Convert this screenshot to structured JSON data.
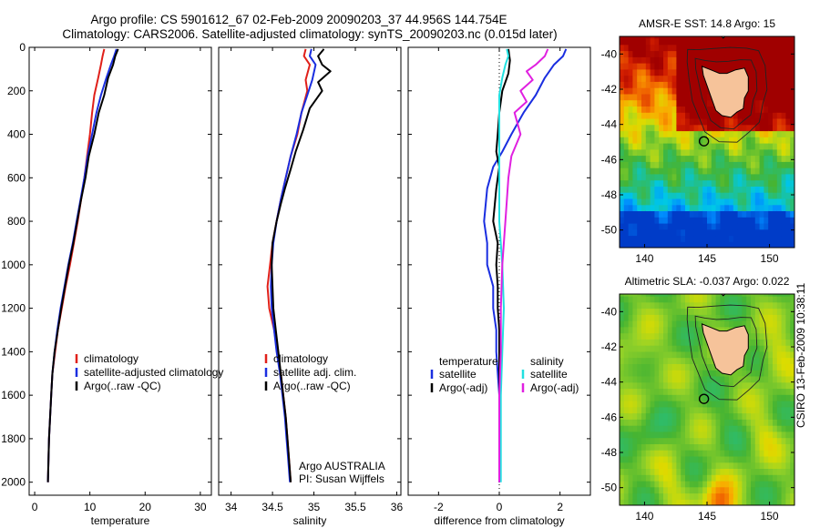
{
  "header": {
    "line1": "Argo profile: CS 5901612_67 02-Feb-2009 20090203_37 44.956S 144.754E",
    "line2": "Climatology: CARS2006. Satellite-adjusted climatology: synTS_20090203.nc (0.015d later)"
  },
  "stamp": "CSIRO 13-Feb-2009 10:38:11",
  "colors": {
    "clim": "#e0201a",
    "sat": "#1a2ee0",
    "argo": "#000000",
    "sat_sal": "#22e0e0",
    "argo_sal": "#e020e0"
  },
  "depth_axis": {
    "ticks": [
      0,
      200,
      400,
      600,
      800,
      1000,
      1200,
      1400,
      1600,
      1800,
      2000
    ],
    "range": [
      0,
      2060
    ]
  },
  "chart_data": [
    {
      "type": "line",
      "panel": "temperature",
      "xlabel": "temperature",
      "xlim": [
        -1,
        32
      ],
      "ylim": [
        2060,
        0
      ],
      "xticks": [
        0,
        10,
        20,
        30
      ],
      "legend": [
        "climatology",
        "satellite-adjusted climatology",
        "Argo(..raw -QC)"
      ],
      "series": [
        {
          "name": "climatology",
          "color": "clim",
          "points": [
            [
              12.6,
              8
            ],
            [
              12.3,
              40
            ],
            [
              12,
              80
            ],
            [
              11.5,
              140
            ],
            [
              10.8,
              220
            ],
            [
              10.4,
              300
            ],
            [
              10,
              400
            ],
            [
              9.5,
              500
            ],
            [
              9,
              600
            ],
            [
              8.4,
              700
            ],
            [
              7.8,
              800
            ],
            [
              7.1,
              900
            ],
            [
              6.4,
              1000
            ],
            [
              5.6,
              1100
            ],
            [
              4.9,
              1200
            ],
            [
              4.2,
              1300
            ],
            [
              3.7,
              1400
            ],
            [
              3.2,
              1500
            ],
            [
              3,
              1600
            ],
            [
              2.8,
              1700
            ],
            [
              2.6,
              1800
            ],
            [
              2.5,
              1900
            ],
            [
              2.4,
              2000
            ]
          ]
        },
        {
          "name": "satellite-adjusted climatology",
          "color": "sat",
          "points": [
            [
              14.8,
              8
            ],
            [
              14.4,
              40
            ],
            [
              13.8,
              80
            ],
            [
              13,
              140
            ],
            [
              12,
              220
            ],
            [
              11.2,
              300
            ],
            [
              10.4,
              400
            ],
            [
              9.6,
              500
            ],
            [
              9,
              600
            ],
            [
              8.3,
              700
            ],
            [
              7.6,
              800
            ],
            [
              6.9,
              900
            ],
            [
              6.1,
              1000
            ],
            [
              5.4,
              1100
            ],
            [
              4.7,
              1200
            ],
            [
              4.1,
              1300
            ],
            [
              3.6,
              1400
            ],
            [
              3.2,
              1500
            ],
            [
              3,
              1600
            ],
            [
              2.8,
              1700
            ],
            [
              2.6,
              1800
            ],
            [
              2.5,
              1900
            ],
            [
              2.4,
              2000
            ]
          ]
        },
        {
          "name": "Argo(..raw -QC)",
          "color": "argo",
          "points": [
            [
              15.1,
              8
            ],
            [
              14.6,
              40
            ],
            [
              14.2,
              80
            ],
            [
              13.3,
              140
            ],
            [
              12.6,
              220
            ],
            [
              11.6,
              300
            ],
            [
              10.8,
              400
            ],
            [
              9.8,
              500
            ],
            [
              9.2,
              600
            ],
            [
              8.4,
              700
            ],
            [
              7.7,
              800
            ],
            [
              7,
              900
            ],
            [
              6.2,
              1000
            ],
            [
              5.5,
              1100
            ],
            [
              4.8,
              1200
            ],
            [
              4.2,
              1300
            ],
            [
              3.6,
              1400
            ],
            [
              3.2,
              1500
            ],
            [
              3,
              1600
            ],
            [
              2.8,
              1700
            ],
            [
              2.6,
              1800
            ],
            [
              2.5,
              1900
            ],
            [
              2.4,
              2000
            ]
          ]
        }
      ]
    },
    {
      "type": "line",
      "panel": "salinity",
      "xlabel": "salinity",
      "xlim": [
        33.85,
        36.05
      ],
      "ylim": [
        2060,
        0
      ],
      "xticks": [
        34,
        34.5,
        35,
        35.5,
        36
      ],
      "legend": [
        "climatology",
        "satellite adj. clim.",
        "Argo(..raw -QC)"
      ],
      "annotations": [
        "Argo AUSTRALIA",
        "PI: Susan Wijffels"
      ],
      "series": [
        {
          "name": "climatology",
          "color": "clim",
          "points": [
            [
              34.9,
              8
            ],
            [
              34.88,
              40
            ],
            [
              34.95,
              80
            ],
            [
              34.9,
              150
            ],
            [
              34.92,
              200
            ],
            [
              34.85,
              300
            ],
            [
              34.8,
              400
            ],
            [
              34.72,
              500
            ],
            [
              34.66,
              600
            ],
            [
              34.6,
              700
            ],
            [
              34.55,
              800
            ],
            [
              34.5,
              900
            ],
            [
              34.47,
              1000
            ],
            [
              34.44,
              1100
            ],
            [
              34.46,
              1200
            ],
            [
              34.52,
              1300
            ],
            [
              34.56,
              1400
            ],
            [
              34.6,
              1500
            ],
            [
              34.63,
              1600
            ],
            [
              34.66,
              1700
            ],
            [
              34.68,
              1800
            ],
            [
              34.7,
              1900
            ],
            [
              34.72,
              2000
            ]
          ]
        },
        {
          "name": "satellite adj. clim.",
          "color": "sat",
          "points": [
            [
              34.97,
              8
            ],
            [
              34.95,
              40
            ],
            [
              35.02,
              80
            ],
            [
              34.98,
              150
            ],
            [
              34.92,
              220
            ],
            [
              34.85,
              300
            ],
            [
              34.79,
              400
            ],
            [
              34.72,
              500
            ],
            [
              34.66,
              600
            ],
            [
              34.6,
              700
            ],
            [
              34.55,
              800
            ],
            [
              34.51,
              900
            ],
            [
              34.49,
              1000
            ],
            [
              34.48,
              1100
            ],
            [
              34.49,
              1200
            ],
            [
              34.52,
              1300
            ],
            [
              34.55,
              1400
            ],
            [
              34.59,
              1500
            ],
            [
              34.62,
              1600
            ],
            [
              34.65,
              1700
            ],
            [
              34.67,
              1800
            ],
            [
              34.69,
              1900
            ],
            [
              34.71,
              2000
            ]
          ]
        },
        {
          "name": "Argo(..raw -QC)",
          "color": "argo",
          "points": [
            [
              35.12,
              8
            ],
            [
              35.05,
              40
            ],
            [
              35.1,
              80
            ],
            [
              35.2,
              110
            ],
            [
              35.05,
              160
            ],
            [
              35.1,
              200
            ],
            [
              34.95,
              280
            ],
            [
              34.87,
              380
            ],
            [
              34.78,
              480
            ],
            [
              34.72,
              560
            ],
            [
              34.65,
              650
            ],
            [
              34.6,
              720
            ],
            [
              34.55,
              800
            ],
            [
              34.5,
              900
            ],
            [
              34.49,
              1000
            ],
            [
              34.5,
              1100
            ],
            [
              34.51,
              1200
            ],
            [
              34.54,
              1300
            ],
            [
              34.57,
              1400
            ],
            [
              34.6,
              1500
            ],
            [
              34.63,
              1600
            ],
            [
              34.66,
              1700
            ],
            [
              34.68,
              1800
            ],
            [
              34.7,
              1900
            ],
            [
              34.72,
              2000
            ]
          ]
        }
      ]
    },
    {
      "type": "line",
      "panel": "difference",
      "xlabel": "difference from climatology",
      "xlim": [
        -3,
        3
      ],
      "ylim": [
        2060,
        0
      ],
      "xticks": [
        -2,
        0,
        2
      ],
      "zero_line": 0,
      "legend_headers": [
        "temperature",
        "salinity"
      ],
      "legend": [
        "satellite",
        "Argo(-adj)",
        "satellite",
        "Argo(-adj)"
      ],
      "series": [
        {
          "name": "satellite",
          "color": "sat",
          "points": [
            [
              2.2,
              8
            ],
            [
              2.1,
              40
            ],
            [
              1.8,
              80
            ],
            [
              1.5,
              140
            ],
            [
              1.2,
              220
            ],
            [
              0.8,
              300
            ],
            [
              0.4,
              400
            ],
            [
              0.1,
              480
            ],
            [
              -0.2,
              550
            ],
            [
              -0.4,
              650
            ],
            [
              -0.5,
              800
            ],
            [
              -0.4,
              900
            ],
            [
              -0.4,
              1000
            ],
            [
              -0.2,
              1100
            ],
            [
              -0.2,
              1200
            ],
            [
              -0.1,
              1300
            ],
            [
              -0.1,
              1400
            ],
            [
              0,
              1600
            ],
            [
              0,
              1800
            ],
            [
              0,
              2000
            ]
          ]
        },
        {
          "name": "Argo(-adj)",
          "color": "argo",
          "points": [
            [
              0.3,
              8
            ],
            [
              0.35,
              60
            ],
            [
              0.3,
              120
            ],
            [
              0.1,
              200
            ],
            [
              0,
              300
            ],
            [
              -0.05,
              400
            ],
            [
              -0.1,
              480
            ],
            [
              0,
              550
            ],
            [
              -0.1,
              650
            ],
            [
              -0.2,
              800
            ],
            [
              -0.05,
              900
            ],
            [
              -0.1,
              1000
            ],
            [
              -0.05,
              1100
            ],
            [
              -0.05,
              1200
            ],
            [
              0,
              1300
            ],
            [
              0,
              1400
            ],
            [
              0,
              1600
            ],
            [
              0,
              1800
            ],
            [
              0,
              2000
            ]
          ]
        },
        {
          "name": "satellite",
          "color": "sat_sal",
          "points": [
            [
              0.25,
              8
            ],
            [
              0.3,
              40
            ],
            [
              0.2,
              80
            ],
            [
              0.1,
              140
            ],
            [
              0,
              220
            ],
            [
              0,
              300
            ],
            [
              0,
              400
            ],
            [
              0,
              500
            ],
            [
              0,
              600
            ],
            [
              0,
              800
            ],
            [
              0.1,
              1000
            ],
            [
              0.15,
              1200
            ],
            [
              0.1,
              1400
            ],
            [
              0.05,
              1600
            ],
            [
              0.05,
              1800
            ],
            [
              0.05,
              2000
            ]
          ]
        },
        {
          "name": "Argo(-adj)",
          "color": "argo_sal",
          "points": [
            [
              1.6,
              8
            ],
            [
              1.5,
              40
            ],
            [
              1.2,
              80
            ],
            [
              0.9,
              110
            ],
            [
              1.1,
              150
            ],
            [
              0.7,
              200
            ],
            [
              0.9,
              250
            ],
            [
              0.5,
              300
            ],
            [
              0.7,
              400
            ],
            [
              0.4,
              500
            ],
            [
              0.3,
              600
            ],
            [
              0.2,
              800
            ],
            [
              0.1,
              1000
            ],
            [
              0.05,
              1200
            ],
            [
              0.05,
              1400
            ],
            [
              0,
              1600
            ],
            [
              0,
              1800
            ],
            [
              0,
              2000
            ]
          ]
        }
      ]
    },
    {
      "type": "heatmap",
      "panel": "map-sst",
      "title": "AMSR-E SST: 14.8 Argo: 15",
      "xlim": [
        138,
        152
      ],
      "ylim": [
        -51,
        -39
      ],
      "xticks": [
        140,
        145,
        150
      ],
      "yticks": [
        -40,
        -42,
        -44,
        -46,
        -48,
        -50
      ],
      "marker": {
        "lon": 144.754,
        "lat": -44.956
      }
    },
    {
      "type": "heatmap",
      "panel": "map-sla",
      "title": "Altimetric SLA: -0.037 Argo: 0.022",
      "xlim": [
        138,
        152
      ],
      "ylim": [
        -51,
        -39
      ],
      "xticks": [
        140,
        145,
        150
      ],
      "yticks": [
        -40,
        -42,
        -44,
        -46,
        -48,
        -50
      ],
      "marker": {
        "lon": 144.754,
        "lat": -44.956
      }
    }
  ]
}
